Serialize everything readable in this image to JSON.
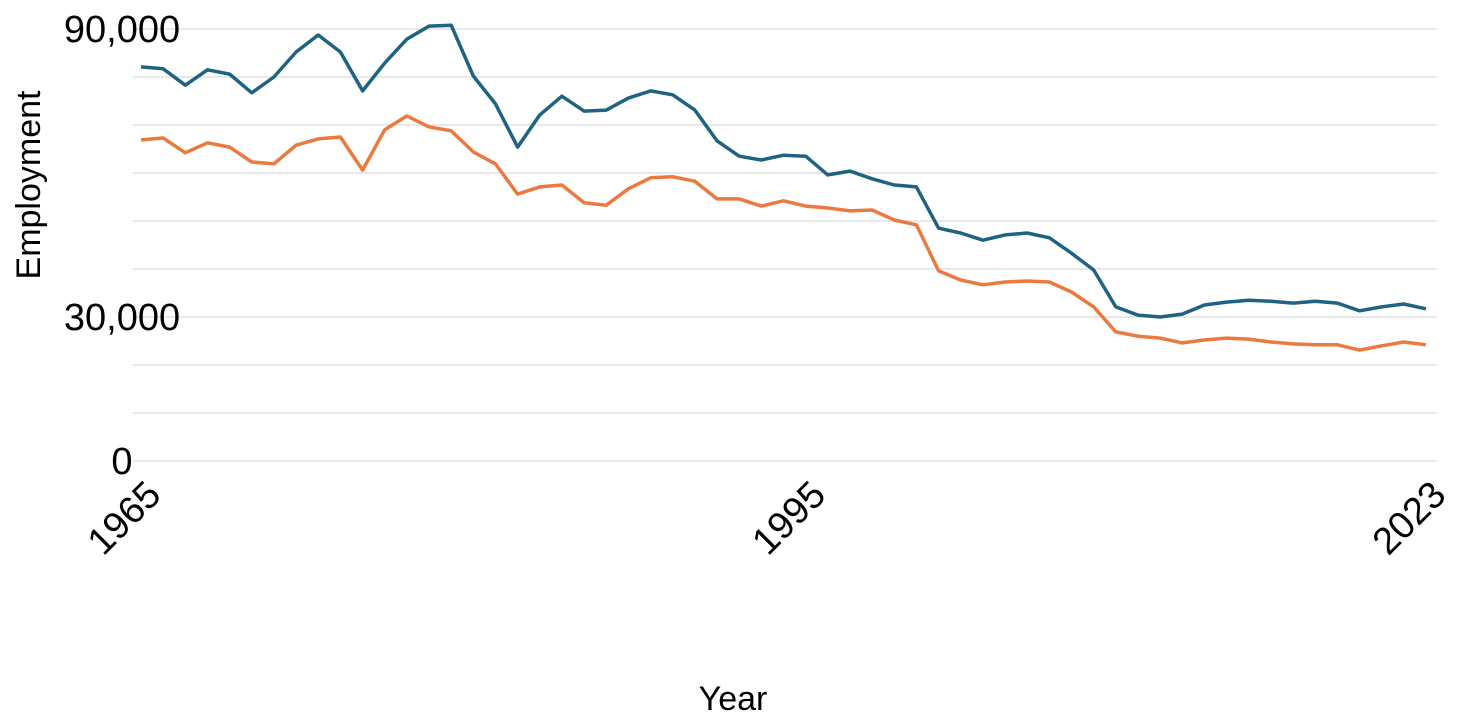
{
  "chart_data": {
    "type": "line",
    "xlabel": "Year",
    "ylabel": "Employment",
    "x": [
      1965,
      1966,
      1967,
      1968,
      1969,
      1970,
      1971,
      1972,
      1973,
      1974,
      1975,
      1976,
      1977,
      1978,
      1979,
      1980,
      1981,
      1982,
      1983,
      1984,
      1985,
      1986,
      1987,
      1988,
      1989,
      1990,
      1991,
      1992,
      1993,
      1994,
      1995,
      1996,
      1997,
      1998,
      1999,
      2000,
      2001,
      2002,
      2003,
      2004,
      2005,
      2006,
      2007,
      2008,
      2009,
      2010,
      2011,
      2012,
      2013,
      2014,
      2015,
      2016,
      2017,
      2018,
      2019,
      2020,
      2021,
      2022,
      2023
    ],
    "series": [
      {
        "color": "#1f6382",
        "values": [
          82100,
          81700,
          78300,
          81500,
          80600,
          76700,
          80000,
          85200,
          88750,
          85200,
          77100,
          82900,
          87900,
          90600,
          90800,
          80200,
          74400,
          65400,
          72100,
          76000,
          72900,
          73100,
          75600,
          77100,
          76300,
          73100,
          66700,
          63500,
          62700,
          63700,
          63500,
          59600,
          60400,
          58800,
          57500,
          57100,
          48500,
          47500,
          46000,
          47100,
          47500,
          46500,
          43300,
          39800,
          32100,
          30400,
          30000,
          30600,
          32500,
          33100,
          33500,
          33300,
          32900,
          33300,
          32900,
          31300,
          32100,
          32700,
          31700
        ]
      },
      {
        "color": "#ea7a3f",
        "values": [
          66900,
          67300,
          64200,
          66300,
          65400,
          62300,
          61900,
          65800,
          67100,
          67500,
          60600,
          69000,
          71900,
          69600,
          68800,
          64400,
          61900,
          55600,
          57100,
          57500,
          53800,
          53300,
          56700,
          59000,
          59200,
          58300,
          54600,
          54600,
          53100,
          54200,
          53100,
          52700,
          52100,
          52300,
          50200,
          49200,
          39600,
          37700,
          36700,
          37300,
          37500,
          37300,
          35200,
          32100,
          26900,
          26000,
          25600,
          24600,
          25200,
          25600,
          25400,
          24800,
          24400,
          24200,
          24200,
          23100,
          24000,
          24800,
          24200
        ]
      }
    ],
    "xlim": [
      1965,
      2023
    ],
    "xticks": [
      1965,
      1995,
      2023
    ],
    "ylim": [
      0,
      90000
    ],
    "yticks": [
      0,
      {
        "value": 30000,
        "label": "30,000"
      },
      {
        "value": 90000,
        "label": "90,000"
      }
    ],
    "ygrid": [
      0,
      10000,
      20000,
      30000,
      40000,
      50000,
      60000,
      70000,
      80000,
      90000
    ]
  }
}
